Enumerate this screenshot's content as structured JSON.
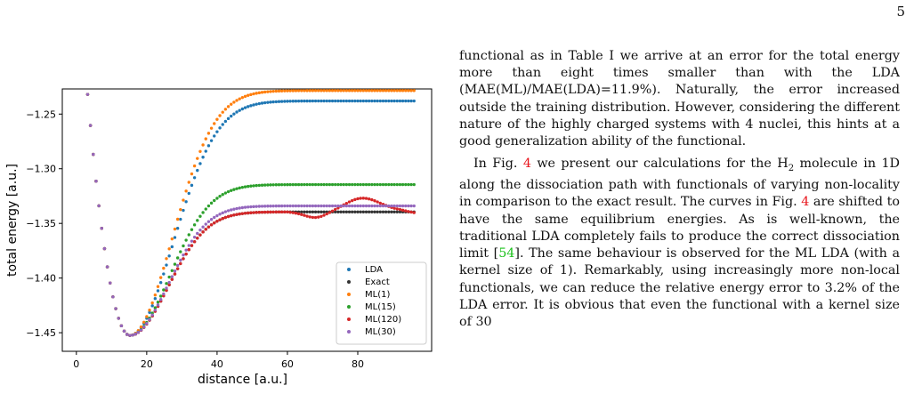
{
  "page": {
    "number": "5"
  },
  "text": {
    "p1": "functional as in Table I we arrive at an error for the total energy more than eight times smaller than with the LDA (MAE(ML)/MAE(LDA)=11.9%). Naturally, the error increased outside the training distribution. However, considering the different nature of the highly charged systems with 4 nuclei, this hints at a good generalization ability of the functional.",
    "p2_a": "In Fig. ",
    "fig_ref": "4",
    "p2_b": " we present our calculations for the H",
    "h2_sub": "2",
    "p2_c": " molecule in 1D along the dissociation path with functionals of varying non-locality in comparison to the exact result. The curves in Fig. ",
    "p2_d": " are shifted to have the same equilibrium energies. As is well-known, the traditional LDA completely fails to produce the correct dissociation limit [",
    "cite": "54",
    "p2_e": "]. The same behaviour is observed for the ML LDA (with a kernel size of 1). Remarkably, using increasingly more non-local functionals, we can reduce the relative energy error to 3.2% of the LDA error. It is obvious that even the functional with a kernel size of 30"
  },
  "chart_data": {
    "type": "scatter",
    "title": "",
    "xlabel": "distance [a.u.]",
    "ylabel": "total energy [a.u.]",
    "xlim": [
      -4,
      101
    ],
    "ylim": [
      -1.467,
      -1.227
    ],
    "xticks": [
      0,
      20,
      40,
      60,
      80
    ],
    "yticks": [
      -1.25,
      -1.3,
      -1.35,
      -1.4,
      -1.45
    ],
    "ytick_labels": [
      "−1.25",
      "−1.30",
      "−1.35",
      "−1.40",
      "−1.45"
    ],
    "legend_position": "lower-right",
    "series": [
      {
        "name": "LDA",
        "color": "#1f77b4",
        "params": {
          "E_inf": -1.238,
          "w": 0.055
        }
      },
      {
        "name": "Exact",
        "color": "#333333",
        "params": {
          "E_inf": -1.3395,
          "w": 0.07
        }
      },
      {
        "name": "ML(1)",
        "color": "#ff7f0e",
        "params": {
          "E_inf": -1.2285,
          "w": 0.058
        }
      },
      {
        "name": "ML(15)",
        "color": "#2ca02c",
        "params": {
          "E_inf": -1.3145,
          "w": 0.065
        }
      },
      {
        "name": "ML(120)",
        "color": "#d62728",
        "params": {
          "E_inf": -1.3395,
          "w": 0.07
        }
      },
      {
        "name": "ML(30)",
        "color": "#9467bd",
        "params": {
          "E_inf": -1.334,
          "w": 0.07
        }
      }
    ],
    "x_min": 0,
    "x_max": 96,
    "x_step": 0.8,
    "min_x": 15.2,
    "min_y": -1.4525
  }
}
